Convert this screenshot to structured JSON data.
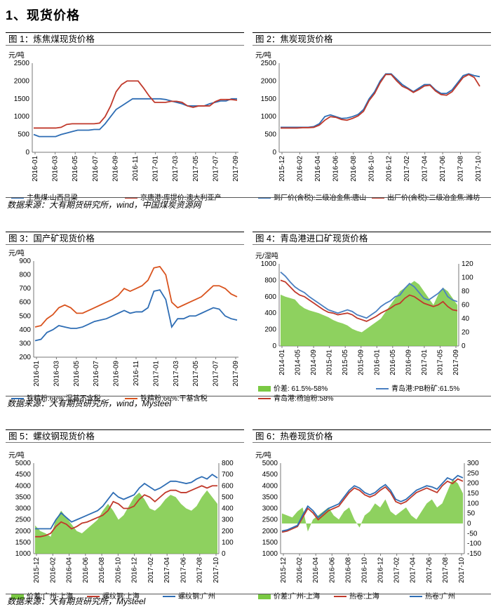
{
  "section_title": "1、现货价格",
  "panels": [
    {
      "title": "图 1：炼焦煤现货价格"
    },
    {
      "title": "图 2：焦炭现货价格"
    },
    {
      "title": "图 3：国产矿现货价格"
    },
    {
      "title": "图 4：青岛港进口矿现货价格"
    },
    {
      "title": "图 5：螺纹钢现货价格"
    },
    {
      "title": "图 6：热卷现货价格"
    }
  ],
  "sources": [
    "数据来源：大有期货研究所，wind，中国煤炭资源网",
    "数据来源：大有期货研究所，wind，Mysteel",
    "数据来源：大有期货研究所，Mysteel"
  ],
  "colors": {
    "blue": "#2e6db4",
    "red": "#c0392b",
    "green": "#7ac943",
    "orange": "#d9531e"
  },
  "chart_data": [
    {
      "type": "line",
      "ylabel": "元/吨",
      "ylim": [
        0,
        2500
      ],
      "yticks": [
        0,
        500,
        1000,
        1500,
        2000,
        2500
      ],
      "xticks": [
        "2016-01",
        "2016-03",
        "2016-05",
        "2016-07",
        "2016-09",
        "2016-11",
        "2017-01",
        "2017-03",
        "2017-05",
        "2017-07",
        "2017-09"
      ],
      "series": [
        {
          "name": "主焦煤:山西吕梁",
          "color": "#2e6db4",
          "values": [
            500,
            440,
            440,
            440,
            440,
            500,
            540,
            580,
            620,
            620,
            620,
            640,
            640,
            800,
            1000,
            1200,
            1300,
            1400,
            1500,
            1500,
            1500,
            1500,
            1500,
            1500,
            1480,
            1440,
            1400,
            1360,
            1300,
            1300,
            1300,
            1300,
            1360,
            1400,
            1440,
            1440,
            1500,
            1500
          ]
        },
        {
          "name": "京唐港:库提价:澳大利亚产",
          "color": "#c0392b",
          "values": [
            680,
            680,
            680,
            680,
            680,
            700,
            780,
            800,
            800,
            800,
            800,
            800,
            820,
            1000,
            1300,
            1700,
            1900,
            2000,
            2000,
            2000,
            1800,
            1580,
            1400,
            1400,
            1400,
            1430,
            1430,
            1400,
            1300,
            1260,
            1300,
            1300,
            1300,
            1420,
            1480,
            1480,
            1480,
            1460
          ]
        }
      ]
    },
    {
      "type": "line",
      "ylabel": "元/吨",
      "ylim": [
        0,
        2500
      ],
      "yticks": [
        0,
        500,
        1000,
        1500,
        2000,
        2500
      ],
      "xticks": [
        "2015-12",
        "2016-02",
        "2016-04",
        "2016-06",
        "2016-08",
        "2016-10",
        "2016-12",
        "2017-02",
        "2017-04",
        "2017-06",
        "2017-08",
        "2017-10"
      ],
      "series": [
        {
          "name": "到厂价(含税):二级冶金焦:唐山",
          "color": "#2e6db4",
          "values": [
            700,
            700,
            700,
            700,
            700,
            700,
            720,
            800,
            1000,
            1050,
            1000,
            950,
            960,
            1000,
            1060,
            1200,
            1500,
            1700,
            2000,
            2200,
            2200,
            2050,
            1900,
            1800,
            1700,
            1800,
            1900,
            1900,
            1750,
            1650,
            1650,
            1750,
            1950,
            2150,
            2200,
            2150,
            2120
          ]
        },
        {
          "name": "出厂价(含税):二级冶金焦:潍坊",
          "color": "#c0392b",
          "values": [
            680,
            680,
            680,
            680,
            690,
            690,
            700,
            760,
            900,
            1000,
            980,
            920,
            900,
            950,
            1020,
            1150,
            1450,
            1650,
            1950,
            2180,
            2180,
            2000,
            1850,
            1780,
            1680,
            1760,
            1860,
            1880,
            1720,
            1620,
            1600,
            1700,
            1900,
            2100,
            2180,
            2100,
            1850
          ]
        }
      ]
    },
    {
      "type": "line",
      "ylabel": "元/吨",
      "ylim": [
        200,
        900
      ],
      "yticks": [
        200,
        300,
        400,
        500,
        600,
        700,
        800,
        900
      ],
      "xticks": [
        "2016-01",
        "2016-03",
        "2016-05",
        "2016-07",
        "2016-09",
        "2016-11",
        "2017-01",
        "2017-03",
        "2017-05",
        "2017-07",
        "2017-09"
      ],
      "series": [
        {
          "name": "铁精粉:66%:湿基不含税",
          "color": "#2e6db4",
          "values": [
            320,
            330,
            380,
            400,
            430,
            420,
            410,
            410,
            420,
            440,
            460,
            470,
            480,
            500,
            520,
            540,
            520,
            530,
            530,
            560,
            680,
            690,
            620,
            420,
            480,
            480,
            500,
            500,
            520,
            540,
            560,
            550,
            500,
            480,
            470
          ]
        },
        {
          "name": "铁精粉:66%:干基含税",
          "color": "#d9531e",
          "values": [
            420,
            430,
            480,
            510,
            560,
            580,
            560,
            520,
            520,
            540,
            560,
            580,
            600,
            620,
            650,
            700,
            680,
            700,
            720,
            760,
            850,
            860,
            800,
            600,
            560,
            580,
            600,
            620,
            640,
            680,
            720,
            720,
            700,
            660,
            640
          ]
        }
      ]
    },
    {
      "type": "line",
      "ylabel": "元/湿吨",
      "ylim": [
        0,
        1000
      ],
      "ylim_right": [
        0,
        120
      ],
      "yticks": [
        0,
        200,
        400,
        600,
        800,
        1000
      ],
      "yticks_right": [
        0,
        20,
        40,
        60,
        80,
        100,
        120
      ],
      "xticks": [
        "2014-01",
        "2014-05",
        "2014-09",
        "2015-01",
        "2015-05",
        "2015-09",
        "2016-01",
        "2016-05",
        "2016-09",
        "2017-01",
        "2017-05",
        "2017-09"
      ],
      "series": [
        {
          "name": "价差: 61.5%-58%",
          "color": "#7ac943",
          "axis": "right",
          "values": [
            75,
            72,
            70,
            68,
            60,
            55,
            52,
            50,
            48,
            45,
            42,
            38,
            35,
            33,
            30,
            25,
            22,
            20,
            25,
            30,
            35,
            40,
            50,
            60,
            70,
            80,
            85,
            90,
            95,
            90,
            80,
            70,
            60,
            75,
            85,
            80,
            70,
            60
          ]
        },
        {
          "name": "青岛港:PB粉矿:61.5%",
          "color": "#4a7fc1",
          "values": [
            900,
            850,
            780,
            720,
            680,
            650,
            600,
            560,
            520,
            480,
            440,
            420,
            400,
            420,
            440,
            420,
            380,
            360,
            340,
            380,
            420,
            480,
            520,
            550,
            600,
            620,
            700,
            760,
            720,
            650,
            580,
            560,
            600,
            640,
            700,
            600,
            560,
            540
          ]
        },
        {
          "name": "青岛港:杨迪粉:58%",
          "color": "#c0392b",
          "values": [
            800,
            780,
            720,
            660,
            620,
            600,
            560,
            520,
            480,
            440,
            410,
            400,
            380,
            390,
            400,
            380,
            340,
            320,
            300,
            330,
            360,
            400,
            430,
            460,
            500,
            520,
            580,
            620,
            600,
            560,
            520,
            500,
            480,
            500,
            540,
            480,
            440,
            430
          ]
        }
      ]
    },
    {
      "type": "line",
      "ylabel": "元/吨",
      "ylim": [
        1000,
        5000
      ],
      "ylim_right": [
        0,
        800
      ],
      "yticks": [
        1000,
        1500,
        2000,
        2500,
        3000,
        3500,
        4000,
        4500,
        5000
      ],
      "yticks_right": [
        0,
        100,
        200,
        300,
        400,
        500,
        600,
        700,
        800
      ],
      "xticks": [
        "2015-12",
        "2016-02",
        "2016-04",
        "2016-06",
        "2016-08",
        "2016-10",
        "2016-12",
        "2017-02",
        "2017-04",
        "2017-06",
        "2017-08",
        "2017-10"
      ],
      "series": [
        {
          "name": "价差:广州-上海",
          "color": "#7ac943",
          "axis": "right",
          "values": [
            250,
            200,
            180,
            150,
            300,
            380,
            320,
            260,
            200,
            180,
            220,
            260,
            300,
            380,
            440,
            380,
            300,
            340,
            420,
            500,
            540,
            480,
            400,
            380,
            420,
            480,
            520,
            500,
            440,
            400,
            380,
            420,
            500,
            560,
            500,
            440
          ]
        },
        {
          "name": "螺纹钢:上海",
          "color": "#c0392b",
          "values": [
            1750,
            1750,
            1800,
            1900,
            2200,
            2400,
            2300,
            2100,
            2200,
            2350,
            2400,
            2500,
            2600,
            2700,
            2900,
            3300,
            3200,
            3000,
            3000,
            3100,
            3400,
            3600,
            3500,
            3300,
            3500,
            3700,
            3800,
            3800,
            3700,
            3700,
            3800,
            3900,
            4000,
            3900,
            4000,
            4000
          ]
        },
        {
          "name": "螺纹钢:广州",
          "color": "#2e6db4",
          "values": [
            2100,
            2100,
            2100,
            2100,
            2500,
            2800,
            2600,
            2400,
            2500,
            2600,
            2700,
            2800,
            2900,
            3100,
            3400,
            3700,
            3500,
            3400,
            3500,
            3600,
            3900,
            4100,
            3950,
            3800,
            3900,
            4050,
            4200,
            4200,
            4150,
            4100,
            4150,
            4300,
            4400,
            4300,
            4500,
            4350
          ]
        }
      ]
    },
    {
      "type": "line",
      "ylabel": "元/吨",
      "ylim": [
        1000,
        5000
      ],
      "ylim_right": [
        -150,
        300
      ],
      "yticks": [
        1000,
        1500,
        2000,
        2500,
        3000,
        3500,
        4000,
        4500,
        5000
      ],
      "yticks_right": [
        -150,
        -100,
        -50,
        0,
        50,
        100,
        150,
        200,
        250,
        300
      ],
      "xticks": [
        "2015-12",
        "2016-02",
        "2016-04",
        "2016-06",
        "2016-08",
        "2016-10",
        "2016-12",
        "2017-02",
        "2017-04",
        "2017-06",
        "2017-08",
        "2017-10"
      ],
      "series": [
        {
          "name": "价差:广州-上海",
          "color": "#7ac943",
          "axis": "right",
          "values": [
            50,
            40,
            30,
            60,
            80,
            -40,
            20,
            40,
            60,
            80,
            40,
            20,
            60,
            80,
            20,
            -20,
            40,
            60,
            100,
            80,
            120,
            60,
            40,
            60,
            80,
            40,
            20,
            60,
            100,
            120,
            80,
            100,
            160,
            220,
            200,
            150
          ]
        },
        {
          "name": "热卷:上海",
          "color": "#c0392b",
          "values": [
            1950,
            2000,
            2100,
            2200,
            2600,
            3000,
            2800,
            2500,
            2700,
            2900,
            3000,
            3100,
            3400,
            3700,
            3900,
            3800,
            3600,
            3500,
            3600,
            3800,
            3950,
            3700,
            3300,
            3200,
            3300,
            3500,
            3700,
            3800,
            3900,
            3800,
            3700,
            4000,
            4200,
            4100,
            4300,
            4200
          ]
        },
        {
          "name": "热卷:广州",
          "color": "#2e6db4",
          "values": [
            2000,
            2050,
            2150,
            2250,
            2700,
            3100,
            2900,
            2600,
            2800,
            3000,
            3100,
            3200,
            3500,
            3800,
            4000,
            3900,
            3700,
            3600,
            3700,
            3900,
            4050,
            3800,
            3400,
            3300,
            3400,
            3600,
            3800,
            3900,
            4000,
            3950,
            3850,
            4100,
            4350,
            4250,
            4450,
            4350
          ]
        }
      ]
    }
  ]
}
